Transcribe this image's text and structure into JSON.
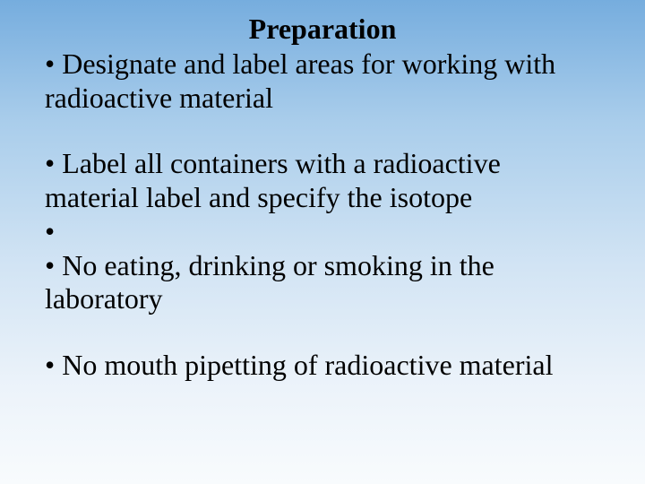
{
  "title": "Preparation",
  "bullets": {
    "b1": "Designate and label areas for working with radioactive material",
    "b2": "Label all containers with a radioactive material label and specify the isotope",
    "b3_empty": "",
    "b4": "No eating, drinking or smoking in the laboratory",
    "b5": "No mouth pipetting of radioactive material"
  },
  "colors": {
    "text": "#000000",
    "bg_top": "#76adde",
    "bg_bottom": "#f8fbfd"
  },
  "font": {
    "family": "Times New Roman",
    "title_size_pt": 24,
    "body_size_pt": 24,
    "title_weight": "bold",
    "body_weight": "normal"
  }
}
